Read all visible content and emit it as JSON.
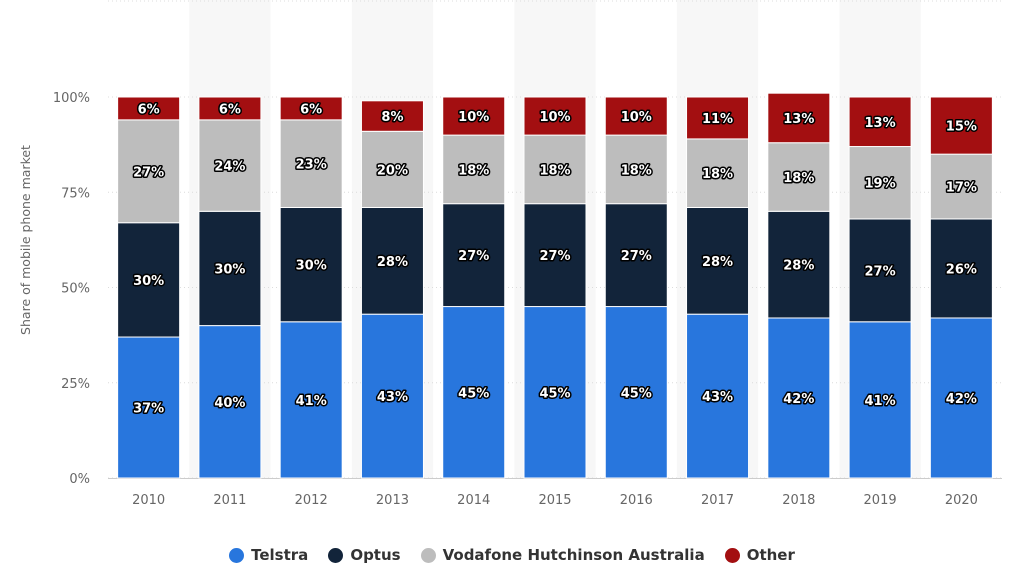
{
  "chart_data": {
    "type": "bar",
    "stacked": true,
    "categories": [
      "2010",
      "2011",
      "2012",
      "2013",
      "2014",
      "2015",
      "2016",
      "2017",
      "2018",
      "2019",
      "2020"
    ],
    "series": [
      {
        "name": "Telstra",
        "color": "#2876dd",
        "values": [
          37,
          40,
          41,
          43,
          45,
          45,
          45,
          43,
          42,
          41,
          42
        ]
      },
      {
        "name": "Optus",
        "color": "#12243a",
        "values": [
          30,
          30,
          30,
          28,
          27,
          27,
          27,
          28,
          28,
          27,
          26
        ]
      },
      {
        "name": "Vodafone Hutchinson Australia",
        "color": "#bdbdbd",
        "values": [
          27,
          24,
          23,
          20,
          18,
          18,
          18,
          18,
          18,
          19,
          17
        ]
      },
      {
        "name": "Other",
        "color": "#a30f11",
        "values": [
          6,
          6,
          6,
          8,
          10,
          10,
          10,
          11,
          13,
          13,
          15
        ]
      }
    ],
    "ylabel": "Share of mobile phone market",
    "xlabel": "",
    "ylim": [
      0,
      100
    ],
    "yticks": [
      "0%",
      "25%",
      "50%",
      "75%",
      "100%"
    ],
    "grid": true,
    "legend": "bottom",
    "value_suffix": "%"
  }
}
